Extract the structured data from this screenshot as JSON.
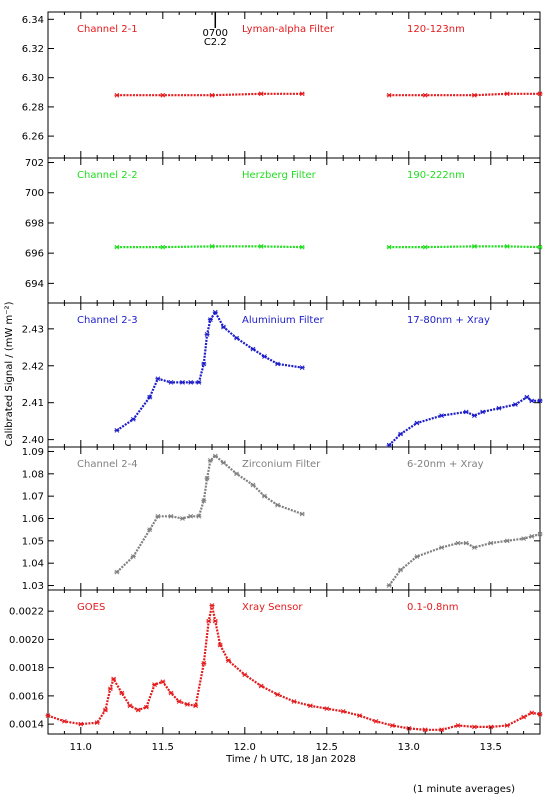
{
  "chart_data": {
    "type": "scatter",
    "xlabel": "Time / h UTC, 18 Jan 2028",
    "ylabel": "Calibrated Signal / (mW m⁻²)",
    "footer": "(1 minute averages)",
    "xlim": [
      10.8,
      13.8
    ],
    "xticks": [
      "11.0",
      "11.5",
      "12.0",
      "12.5",
      "13.0",
      "13.5"
    ],
    "event_marker": {
      "x": 11.82,
      "time_label": "0700",
      "class_label": "C2.2"
    },
    "panels": [
      {
        "channel": "Channel 2-1",
        "filter": "Lyman-alpha Filter",
        "band": "120-123nm",
        "color": "#e41a1c",
        "ylim": [
          6.245,
          6.345
        ],
        "yticks": [
          "6.26",
          "6.28",
          "6.30",
          "6.32",
          "6.34"
        ],
        "series": [
          {
            "x": [
              11.22,
              11.5,
              11.8,
              12.1,
              12.35
            ],
            "y": [
              6.288,
              6.288,
              6.288,
              6.289,
              6.289
            ]
          },
          {
            "x": [
              12.88,
              13.1,
              13.4,
              13.6,
              13.8
            ],
            "y": [
              6.288,
              6.288,
              6.288,
              6.289,
              6.289
            ]
          }
        ]
      },
      {
        "channel": "Channel 2-2",
        "filter": "Herzberg Filter",
        "band": "190-222nm",
        "color": "#22dd22",
        "ylim": [
          692.7,
          702.3
        ],
        "yticks": [
          "694",
          "696",
          "698",
          "700",
          "702"
        ],
        "series": [
          {
            "x": [
              11.22,
              11.5,
              11.8,
              12.1,
              12.35
            ],
            "y": [
              696.4,
              696.4,
              696.45,
              696.45,
              696.4
            ]
          },
          {
            "x": [
              12.88,
              13.1,
              13.4,
              13.6,
              13.8
            ],
            "y": [
              696.4,
              696.4,
              696.45,
              696.45,
              696.4
            ]
          }
        ]
      },
      {
        "channel": "Channel 2-3",
        "filter": "Aluminium Filter",
        "band": "17-80nm + Xray",
        "color": "#1c1cc8",
        "ylim": [
          2.398,
          2.437
        ],
        "yticks": [
          "2.40",
          "2.41",
          "2.42",
          "2.43"
        ],
        "series": [
          {
            "x": [
              11.22,
              11.32,
              11.42,
              11.47,
              11.55,
              11.62,
              11.67,
              11.72,
              11.75,
              11.77,
              11.79,
              11.82,
              11.87,
              11.95,
              12.05,
              12.12,
              12.2,
              12.35
            ],
            "y": [
              2.4025,
              2.4055,
              2.4115,
              2.4165,
              2.4155,
              2.4155,
              2.4155,
              2.4155,
              2.4205,
              2.4285,
              2.4325,
              2.4345,
              2.4305,
              2.4275,
              2.4245,
              2.4225,
              2.4205,
              2.4195
            ]
          },
          {
            "x": [
              12.88,
              12.95,
              13.05,
              13.2,
              13.35,
              13.4,
              13.45,
              13.55,
              13.65,
              13.72,
              13.75,
              13.8
            ],
            "y": [
              2.3985,
              2.4015,
              2.4045,
              2.4065,
              2.4075,
              2.4065,
              2.4075,
              2.4085,
              2.4095,
              2.4115,
              2.4105,
              2.4105
            ]
          }
        ]
      },
      {
        "channel": "Channel 2-4",
        "filter": "Zirconium Filter",
        "band": "6-20nm + Xray",
        "color": "#808080",
        "ylim": [
          1.028,
          1.092
        ],
        "yticks": [
          "1.03",
          "1.04",
          "1.05",
          "1.06",
          "1.07",
          "1.08",
          "1.09"
        ],
        "series": [
          {
            "x": [
              11.22,
              11.32,
              11.42,
              11.47,
              11.55,
              11.62,
              11.67,
              11.72,
              11.75,
              11.77,
              11.79,
              11.82,
              11.87,
              11.95,
              12.05,
              12.12,
              12.2,
              12.35
            ],
            "y": [
              1.036,
              1.043,
              1.055,
              1.061,
              1.061,
              1.06,
              1.061,
              1.061,
              1.068,
              1.078,
              1.086,
              1.088,
              1.085,
              1.08,
              1.075,
              1.07,
              1.066,
              1.062
            ]
          },
          {
            "x": [
              12.88,
              12.95,
              13.05,
              13.2,
              13.3,
              13.35,
              13.4,
              13.5,
              13.6,
              13.7,
              13.75,
              13.8
            ],
            "y": [
              1.03,
              1.037,
              1.043,
              1.047,
              1.049,
              1.049,
              1.047,
              1.049,
              1.05,
              1.051,
              1.052,
              1.053
            ]
          }
        ]
      },
      {
        "channel": "GOES",
        "filter": "Xray Sensor",
        "band": "0.1-0.8nm",
        "color": "#e41a1c",
        "ylim": [
          0.00133,
          0.00235
        ],
        "yticks": [
          "0.0014",
          "0.0016",
          "0.0018",
          "0.0020",
          "0.0022"
        ],
        "series": [
          {
            "x": [
              10.8,
              10.9,
              11.0,
              11.1,
              11.15,
              11.18,
              11.2,
              11.25,
              11.3,
              11.35,
              11.4,
              11.45,
              11.5,
              11.55,
              11.6,
              11.65,
              11.7,
              11.75,
              11.78,
              11.8,
              11.82,
              11.85,
              11.9,
              12.0,
              12.1,
              12.2,
              12.3,
              12.4,
              12.5,
              12.6,
              12.7,
              12.8,
              12.9,
              13.0,
              13.1,
              13.2,
              13.3,
              13.4,
              13.5,
              13.6,
              13.7,
              13.75,
              13.8
            ],
            "y": [
              0.00146,
              0.00142,
              0.0014,
              0.00141,
              0.0015,
              0.00165,
              0.00172,
              0.00162,
              0.00153,
              0.0015,
              0.00152,
              0.00168,
              0.0017,
              0.00162,
              0.00156,
              0.00154,
              0.00153,
              0.00183,
              0.00213,
              0.00224,
              0.00213,
              0.00196,
              0.00185,
              0.00175,
              0.00167,
              0.00161,
              0.00156,
              0.00153,
              0.00151,
              0.00149,
              0.00146,
              0.00142,
              0.00139,
              0.00137,
              0.00136,
              0.00136,
              0.00139,
              0.00138,
              0.00138,
              0.00139,
              0.00145,
              0.00148,
              0.00147
            ]
          }
        ]
      }
    ]
  }
}
